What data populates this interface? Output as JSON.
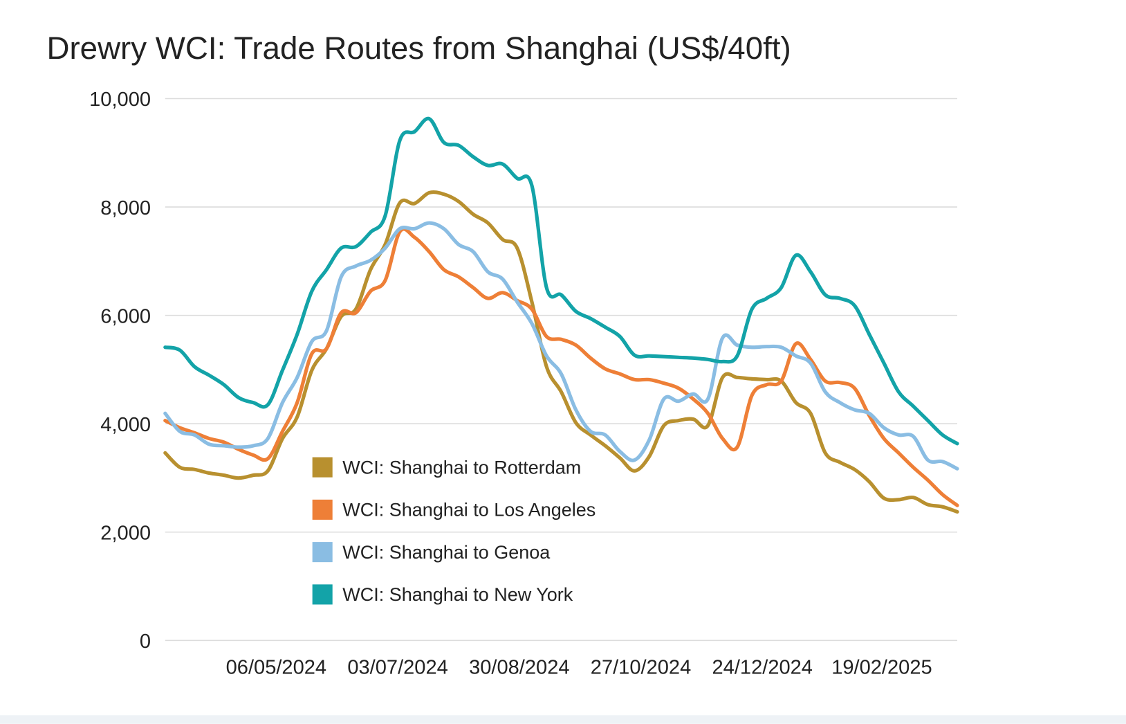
{
  "chart_data": {
    "type": "line",
    "title": "Drewry WCI: Trade Routes from Shanghai (US$/40ft)",
    "x": [
      "14/03/2024",
      "21/03/2024",
      "28/03/2024",
      "04/04/2024",
      "11/04/2024",
      "18/04/2024",
      "25/04/2024",
      "02/05/2024",
      "09/05/2024",
      "16/05/2024",
      "23/05/2024",
      "30/05/2024",
      "06/06/2024",
      "13/06/2024",
      "20/06/2024",
      "27/06/2024",
      "04/07/2024",
      "11/07/2024",
      "18/07/2024",
      "25/07/2024",
      "01/08/2024",
      "08/08/2024",
      "15/08/2024",
      "22/08/2024",
      "29/08/2024",
      "05/09/2024",
      "12/09/2024",
      "19/09/2024",
      "26/09/2024",
      "03/10/2024",
      "10/10/2024",
      "17/10/2024",
      "24/10/2024",
      "31/10/2024",
      "07/11/2024",
      "14/11/2024",
      "21/11/2024",
      "28/11/2024",
      "05/12/2024",
      "12/12/2024",
      "19/12/2024",
      "26/12/2024",
      "02/01/2025",
      "09/01/2025",
      "16/01/2025",
      "23/01/2025",
      "30/01/2025",
      "06/02/2025",
      "13/02/2025",
      "20/02/2025",
      "27/02/2025",
      "06/03/2025",
      "13/03/2025",
      "20/03/2025",
      "27/03/2025"
    ],
    "xlim": [
      "14/03/2024",
      "27/03/2025"
    ],
    "xticks": [
      "06/05/2024",
      "03/07/2024",
      "30/08/2024",
      "27/10/2024",
      "24/12/2024",
      "19/02/2025"
    ],
    "ylim": [
      0,
      10000
    ],
    "yticks": [
      0,
      {
        "value": 2000,
        "label": "2,000"
      },
      {
        "value": 4000,
        "label": "4,000"
      },
      {
        "value": 6000,
        "label": "6,000"
      },
      {
        "value": 8000,
        "label": "8,000"
      },
      {
        "value": 10000,
        "label": "10,000"
      }
    ],
    "grid": true,
    "series": [
      {
        "name": "WCI: Shanghai to Rotterdam",
        "color": "#b8902f",
        "values": [
          3462,
          3196,
          3156,
          3090,
          3050,
          2997,
          3050,
          3130,
          3727,
          4125,
          4987,
          5385,
          5981,
          6114,
          6844,
          7308,
          8077,
          8064,
          8263,
          8236,
          8103,
          7865,
          7706,
          7401,
          7241,
          6247,
          5053,
          4589,
          4019,
          3793,
          3594,
          3369,
          3130,
          3395,
          3966,
          4058,
          4085,
          3966,
          4854,
          4854,
          4828,
          4814,
          4788,
          4390,
          4191,
          3462,
          3289,
          3156,
          2931,
          2626,
          2599,
          2639,
          2507,
          2467,
          2374
        ]
      },
      {
        "name": "WCI: Shanghai to Los Angeles",
        "color": "#ee7f37",
        "values": [
          4058,
          3926,
          3833,
          3727,
          3660,
          3528,
          3422,
          3355,
          3859,
          4390,
          5292,
          5385,
          6048,
          6048,
          6446,
          6645,
          7546,
          7440,
          7175,
          6844,
          6711,
          6512,
          6313,
          6419,
          6273,
          6114,
          5610,
          5557,
          5451,
          5212,
          5013,
          4920,
          4814,
          4814,
          4748,
          4655,
          4456,
          4191,
          3727,
          3568,
          4523,
          4721,
          4788,
          5477,
          5186,
          4788,
          4761,
          4655,
          4151,
          3727,
          3462,
          3196,
          2958,
          2692,
          2493
        ]
      },
      {
        "name": "WCI: Shanghai to Genoa",
        "color": "#8abde3",
        "values": [
          4191,
          3859,
          3793,
          3621,
          3594,
          3568,
          3594,
          3727,
          4390,
          4854,
          5517,
          5716,
          6711,
          6910,
          7016,
          7241,
          7599,
          7599,
          7706,
          7599,
          7308,
          7175,
          6804,
          6671,
          6247,
          5849,
          5252,
          4920,
          4257,
          3859,
          3793,
          3488,
          3329,
          3700,
          4456,
          4416,
          4549,
          4456,
          5584,
          5451,
          5411,
          5424,
          5411,
          5252,
          5119,
          4589,
          4390,
          4257,
          4191,
          3926,
          3793,
          3767,
          3329,
          3302,
          3170
        ]
      },
      {
        "name": "WCI: Shanghai to New York",
        "color": "#13a3a8",
        "values": [
          5411,
          5358,
          5053,
          4894,
          4721,
          4483,
          4390,
          4350,
          4987,
          5650,
          6446,
          6844,
          7241,
          7268,
          7533,
          7838,
          9231,
          9390,
          9629,
          9191,
          9138,
          8926,
          8767,
          8793,
          8528,
          8395,
          6512,
          6379,
          6074,
          5942,
          5782,
          5610,
          5265,
          5252,
          5239,
          5225,
          5212,
          5186,
          5146,
          5252,
          6114,
          6313,
          6512,
          7109,
          6804,
          6379,
          6313,
          6180,
          5650,
          5119,
          4589,
          4324,
          4058,
          3793,
          3634
        ]
      }
    ]
  }
}
